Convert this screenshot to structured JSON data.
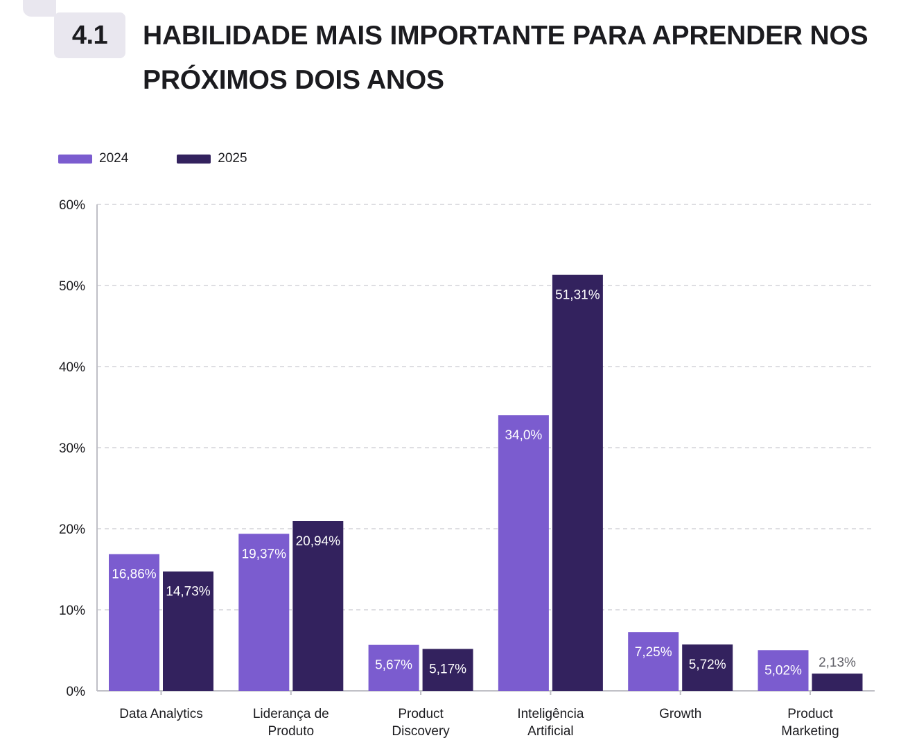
{
  "section_number": "4.1",
  "colors": {
    "series_2024": "#7b5ccf",
    "series_2025": "#33225e",
    "grid": "#d4d4d8",
    "axis": "#bfbfc6",
    "badge_bg": "#e9e7ef"
  },
  "chart_data": {
    "type": "bar",
    "title": "HABILIDADE MAIS IMPORTANTE PARA APRENDER NOS PRÓXIMOS DOIS ANOS",
    "categories": [
      "Data Analytics",
      "Liderança de Produto",
      "Product Discovery",
      "Inteligência Artificial",
      "Growth",
      "Product Marketing"
    ],
    "category_lines": [
      [
        "Data Analytics"
      ],
      [
        "Liderança de",
        "Produto"
      ],
      [
        "Product",
        "Discovery"
      ],
      [
        "Inteligência",
        "Artificial"
      ],
      [
        "Growth"
      ],
      [
        "Product",
        "Marketing"
      ]
    ],
    "series": [
      {
        "name": "2024",
        "values": [
          16.86,
          19.37,
          5.67,
          34.0,
          7.25,
          5.02
        ],
        "labels": [
          "16,86%",
          "19,37%",
          "5,67%",
          "34,0%",
          "7,25%",
          "5,02%"
        ]
      },
      {
        "name": "2025",
        "values": [
          14.73,
          20.94,
          5.17,
          51.31,
          5.72,
          2.13
        ],
        "labels": [
          "14,73%",
          "20,94%",
          "5,17%",
          "51,31%",
          "5,72%",
          "2,13%"
        ]
      }
    ],
    "y_ticks": [
      0,
      10,
      20,
      30,
      40,
      50,
      60
    ],
    "y_tick_labels": [
      "0%",
      "10%",
      "20%",
      "30%",
      "40%",
      "50%",
      "60%"
    ],
    "ylim": [
      0,
      60
    ],
    "grid": true,
    "legend_position": "top-left"
  }
}
